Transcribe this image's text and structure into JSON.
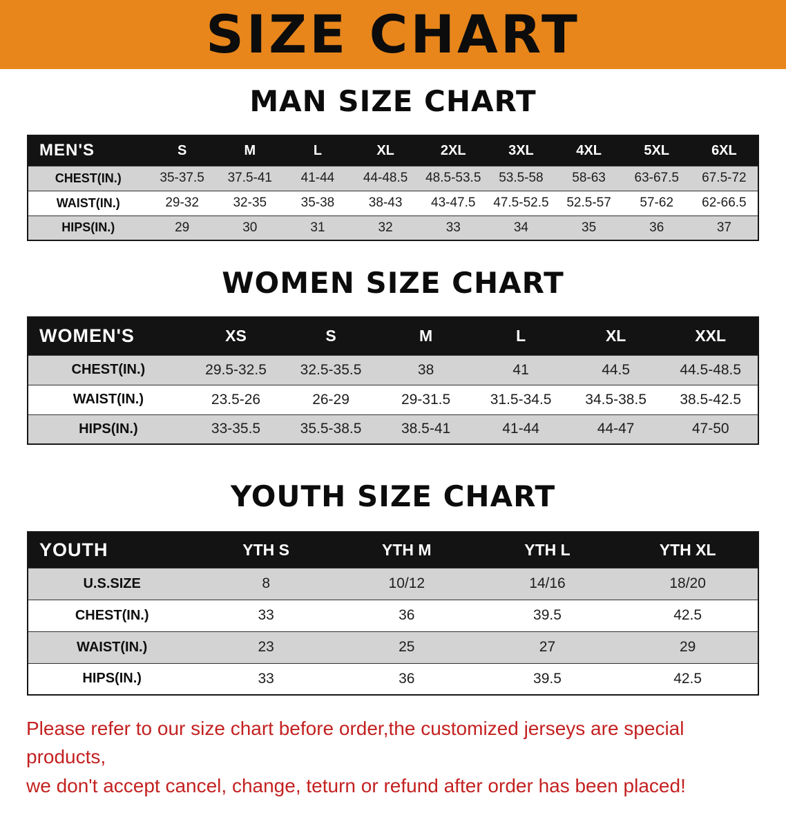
{
  "banner": {
    "title": "SIZE CHART"
  },
  "colors": {
    "banner_bg": "#e8861b",
    "table_header_bg": "#131313",
    "stripe_gray": "#d3d3d3",
    "note_red": "#c42121"
  },
  "men": {
    "heading": "MAN SIZE CHART",
    "header": [
      "MEN'S",
      "S",
      "M",
      "L",
      "XL",
      "2XL",
      "3XL",
      "4XL",
      "5XL",
      "6XL"
    ],
    "rows": [
      {
        "label": "CHEST(IN.)",
        "values": [
          "35-37.5",
          "37.5-41",
          "41-44",
          "44-48.5",
          "48.5-53.5",
          "53.5-58",
          "58-63",
          "63-67.5",
          "67.5-72"
        ]
      },
      {
        "label": "WAIST(IN.)",
        "values": [
          "29-32",
          "32-35",
          "35-38",
          "38-43",
          "43-47.5",
          "47.5-52.5",
          "52.5-57",
          "57-62",
          "62-66.5"
        ]
      },
      {
        "label": "HIPS(IN.)",
        "values": [
          "29",
          "30",
          "31",
          "32",
          "33",
          "34",
          "35",
          "36",
          "37"
        ]
      }
    ]
  },
  "women": {
    "heading": "WOMEN SIZE CHART",
    "header": [
      "WOMEN'S",
      "XS",
      "S",
      "M",
      "L",
      "XL",
      "XXL"
    ],
    "rows": [
      {
        "label": "CHEST(IN.)",
        "values": [
          "29.5-32.5",
          "32.5-35.5",
          "38",
          "41",
          "44.5",
          "44.5-48.5"
        ]
      },
      {
        "label": "WAIST(IN.)",
        "values": [
          "23.5-26",
          "26-29",
          "29-31.5",
          "31.5-34.5",
          "34.5-38.5",
          "38.5-42.5"
        ]
      },
      {
        "label": "HIPS(IN.)",
        "values": [
          "33-35.5",
          "35.5-38.5",
          "38.5-41",
          "41-44",
          "44-47",
          "47-50"
        ]
      }
    ]
  },
  "youth": {
    "heading": "YOUTH SIZE CHART",
    "header": [
      "YOUTH",
      "YTH S",
      "YTH M",
      "YTH L",
      "YTH XL"
    ],
    "rows": [
      {
        "label": "U.S.SIZE",
        "values": [
          "8",
          "10/12",
          "14/16",
          "18/20"
        ]
      },
      {
        "label": "CHEST(IN.)",
        "values": [
          "33",
          "36",
          "39.5",
          "42.5"
        ]
      },
      {
        "label": "WAIST(IN.)",
        "values": [
          "23",
          "25",
          "27",
          "29"
        ]
      },
      {
        "label": "HIPS(IN.)",
        "values": [
          "33",
          "36",
          "39.5",
          "42.5"
        ]
      }
    ]
  },
  "footer": {
    "line1": "Please refer to our size chart before order,the customized jerseys are special products,",
    "line2": "we don't accept cancel, change, teturn or refund after order has been placed!"
  }
}
